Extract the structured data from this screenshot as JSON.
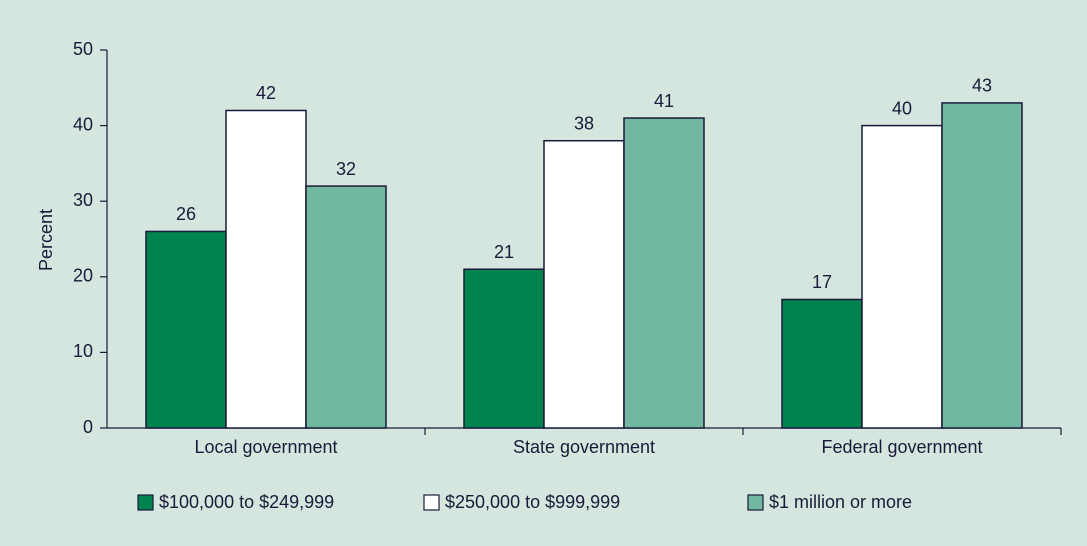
{
  "chart_data": {
    "type": "bar",
    "y_label": "Percent",
    "categories": [
      "Local government",
      "State government",
      "Federal government"
    ],
    "series": [
      {
        "name": "$100,000 to $249,999",
        "color": "#00834f",
        "values": [
          26,
          21,
          17
        ]
      },
      {
        "name": "$250,000 to $999,999",
        "color": "#ffffff",
        "values": [
          42,
          38,
          40
        ]
      },
      {
        "name": "$1 million or more",
        "color": "#72b8a0",
        "values": [
          32,
          41,
          43
        ]
      }
    ],
    "ylim": [
      0,
      50
    ],
    "yticks": [
      0,
      10,
      20,
      30,
      40,
      50
    ],
    "grid": false
  }
}
